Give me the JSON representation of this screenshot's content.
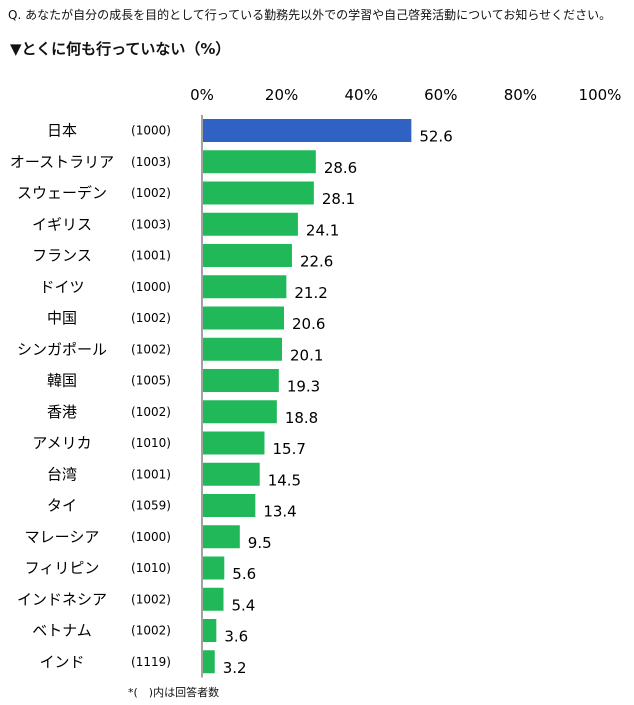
{
  "question": "Q. あなたが自分の成長を目的として行っている勤務先以外での学習や自己啓発活動についてお知らせください。",
  "title": "▼とくに何も行っていない（%）",
  "footnote": "*(　)内は回答者数",
  "colors": {
    "highlight": "#2f62c2",
    "bar": "#20b858",
    "axis": "#444444"
  },
  "chart_data": {
    "type": "bar",
    "orientation": "horizontal",
    "xlim": [
      0,
      100
    ],
    "x_ticks": [
      "0%",
      "20%",
      "40%",
      "60%",
      "80%",
      "100%"
    ],
    "x_tick_values": [
      0,
      20,
      40,
      60,
      80,
      100
    ],
    "categories": [
      "日本",
      "オーストラリア",
      "スウェーデン",
      "イギリス",
      "フランス",
      "ドイツ",
      "中国",
      "シンガポール",
      "韓国",
      "香港",
      "アメリカ",
      "台湾",
      "タイ",
      "マレーシア",
      "フィリピン",
      "インドネシア",
      "ベトナム",
      "インド"
    ],
    "counts": [
      "(1000)",
      "(1003)",
      "(1002)",
      "(1003)",
      "(1001)",
      "(1000)",
      "(1002)",
      "(1002)",
      "(1005)",
      "(1002)",
      "(1010)",
      "(1001)",
      "(1059)",
      "(1000)",
      "(1010)",
      "(1002)",
      "(1002)",
      "(1119)"
    ],
    "values": [
      52.6,
      28.6,
      28.1,
      24.1,
      22.6,
      21.2,
      20.6,
      20.1,
      19.3,
      18.8,
      15.7,
      14.5,
      13.4,
      9.5,
      5.6,
      5.4,
      3.6,
      3.2
    ],
    "value_labels": [
      "52.6",
      "28.6",
      "28.1",
      "24.1",
      "22.6",
      "21.2",
      "20.6",
      "20.1",
      "19.3",
      "18.8",
      "15.7",
      "14.5",
      "13.4",
      "9.5",
      "5.6",
      "5.4",
      "3.6",
      "3.2"
    ],
    "highlight_index": 0,
    "grid": false,
    "legend": "none"
  }
}
